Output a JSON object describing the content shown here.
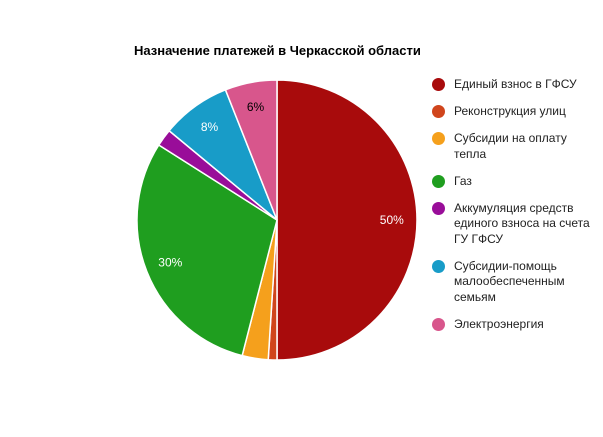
{
  "chart_data": {
    "type": "pie",
    "title": "Назначение платежей в Черкасской области",
    "legend_position": "right",
    "start_angle_deg": 0,
    "direction": "clockwise",
    "slices": [
      {
        "label": "Единый взнос в ГФСУ",
        "value": 50,
        "color": "#a80b0c",
        "label_text": "50%",
        "label_color": "#ffffff"
      },
      {
        "label": "Реконструкция улиц",
        "value": 1,
        "color": "#d0451c",
        "label_text": "",
        "label_color": ""
      },
      {
        "label": "Субсидии на оплату тепла",
        "value": 3,
        "color": "#f5a01c",
        "label_text": "",
        "label_color": ""
      },
      {
        "label": "Газ",
        "value": 30,
        "color": "#1f9e1f",
        "label_text": "30%",
        "label_color": "#ffffff"
      },
      {
        "label": "Аккумуляция средств единого взноса на счета ГУ ГФСУ",
        "value": 2,
        "color": "#990d99",
        "label_text": "",
        "label_color": ""
      },
      {
        "label": "Субсидии-помощь малообеспеченным семьям",
        "value": 8,
        "color": "#189cc8",
        "label_text": "8%",
        "label_color": "#ffffff"
      },
      {
        "label": "Электроэнергия",
        "value": 6,
        "color": "#d8568c",
        "label_text": "6%",
        "label_color": "#000000"
      }
    ]
  }
}
